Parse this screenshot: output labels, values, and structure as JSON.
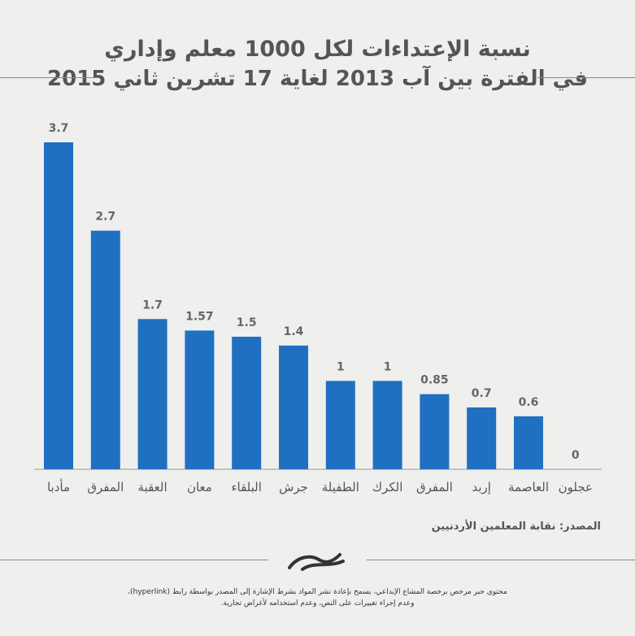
{
  "title_line1": "نسبة الإعتداءات لكل 1000 معلم وإداري",
  "title_line2": "في الفترة بين آب 2013 لغاية 17 تشرين ثاني 2015",
  "source": "المصدر: نقابة المعلمين الأردنيين",
  "license_line1": "محتوى حبر مرخص برخصة المشاع الإبداعي، يسمح بإعادة نشر المواد بشرط الإشارة إلى المصدر بواسطة رابط (hyperlink)،",
  "license_line2": "وعدم إجراء تغييرات على النص، وعدم استخدامه لأغراض تجارية.",
  "logo_icon": "hibr-logo-icon",
  "colors": {
    "bar": "#1f70c1",
    "background": "#efefed"
  },
  "chart_data": {
    "type": "bar",
    "categories": [
      "مأدبا",
      "المفرق",
      "العقبة",
      "معان",
      "البلقاء",
      "جرش",
      "الطفيلة",
      "الكرك",
      "المفرق",
      "إربد",
      "العاصمة",
      "عجلون"
    ],
    "values": [
      3.7,
      2.7,
      1.7,
      1.57,
      1.5,
      1.4,
      1,
      1,
      0.85,
      0.7,
      0.6,
      0
    ],
    "value_labels": [
      "3.7",
      "2.7",
      "1.7",
      "1.57",
      "1.5",
      "1.4",
      "1",
      "1",
      "0.85",
      "0.7",
      "0.6",
      "0"
    ],
    "ylim": [
      0,
      3.7
    ],
    "grid": false,
    "legend": "none"
  }
}
